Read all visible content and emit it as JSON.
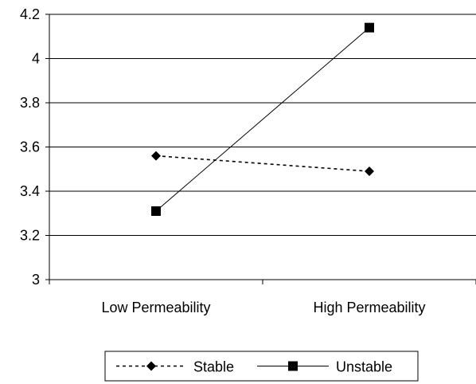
{
  "chart_data": {
    "type": "line",
    "categories": [
      "Low Permeability",
      "High Permeability"
    ],
    "series": [
      {
        "name": "Stable",
        "values": [
          3.56,
          3.49
        ],
        "marker": "diamond",
        "line_style": "dashed",
        "color": "#000000"
      },
      {
        "name": "Unstable",
        "values": [
          3.31,
          4.14
        ],
        "marker": "square",
        "line_style": "solid",
        "color": "#000000"
      }
    ],
    "yticks": [
      "3",
      "3.2",
      "3.4",
      "3.6",
      "3.8",
      "4",
      "4.2"
    ],
    "ylim": [
      3,
      4.2
    ],
    "grid": true,
    "legend_position": "bottom"
  }
}
